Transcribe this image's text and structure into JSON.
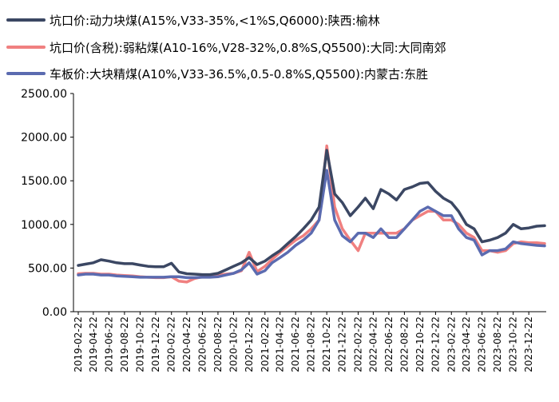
{
  "chart_data": {
    "type": "line",
    "title": "",
    "xlabel": "",
    "ylabel": "",
    "ylim": [
      0,
      2500
    ],
    "yticks": [
      "0.00",
      "500.00",
      "1000.00",
      "1500.00",
      "2000.00",
      "2500.00"
    ],
    "grid": false,
    "legend_position": "top-left",
    "x_tick_labels": [
      "2019-02-22",
      "2019-04-22",
      "2019-06-22",
      "2019-08-22",
      "2019-10-22",
      "2019-12-22",
      "2020-02-22",
      "2020-04-22",
      "2020-06-22",
      "2020-08-22",
      "2020-10-22",
      "2020-12-22",
      "2021-02-22",
      "2021-04-22",
      "2021-06-22",
      "2021-08-22",
      "2021-10-22",
      "2021-12-22",
      "2022-02-22",
      "2022-04-22",
      "2022-06-22",
      "2022-08-22",
      "2022-10-22",
      "2022-12-22",
      "2023-02-22",
      "2023-04-22",
      "2023-06-22",
      "2023-08-22",
      "2023-10-22",
      "2023-12-22"
    ],
    "x": [
      "2019-02-22",
      "2019-03-22",
      "2019-04-22",
      "2019-05-22",
      "2019-06-22",
      "2019-07-22",
      "2019-08-22",
      "2019-09-22",
      "2019-10-22",
      "2019-11-22",
      "2019-12-22",
      "2020-01-22",
      "2020-02-22",
      "2020-03-22",
      "2020-04-22",
      "2020-05-22",
      "2020-06-22",
      "2020-07-22",
      "2020-08-22",
      "2020-09-22",
      "2020-10-22",
      "2020-11-22",
      "2020-12-22",
      "2021-01-22",
      "2021-02-22",
      "2021-03-22",
      "2021-04-22",
      "2021-05-22",
      "2021-06-22",
      "2021-07-22",
      "2021-08-22",
      "2021-09-22",
      "2021-10-22",
      "2021-11-22",
      "2021-12-22",
      "2022-01-22",
      "2022-02-22",
      "2022-03-22",
      "2022-04-22",
      "2022-05-22",
      "2022-06-22",
      "2022-07-22",
      "2022-08-22",
      "2022-09-22",
      "2022-10-22",
      "2022-11-22",
      "2022-12-22",
      "2023-01-22",
      "2023-02-22",
      "2023-03-22",
      "2023-04-22",
      "2023-05-22",
      "2023-06-22",
      "2023-07-22",
      "2023-08-22",
      "2023-09-22",
      "2023-10-22",
      "2023-11-22",
      "2023-12-22",
      "2024-01-22",
      "2024-02-22"
    ],
    "series": [
      {
        "name": "坑口价:动力块煤(A15%,V33-35%,<1%S,Q6000):陕西:榆林",
        "color": "#3b4763",
        "values": [
          530,
          545,
          560,
          595,
          580,
          560,
          550,
          550,
          535,
          520,
          515,
          515,
          555,
          455,
          435,
          430,
          425,
          425,
          440,
          480,
          520,
          560,
          620,
          540,
          580,
          640,
          700,
          780,
          860,
          950,
          1050,
          1200,
          1850,
          1350,
          1250,
          1100,
          1200,
          1300,
          1180,
          1400,
          1350,
          1280,
          1400,
          1430,
          1470,
          1480,
          1380,
          1300,
          1250,
          1150,
          1000,
          950,
          800,
          820,
          850,
          900,
          1000,
          950,
          960,
          980,
          985
        ]
      },
      {
        "name": "坑口价(含税):弱粘煤(A10-16%,V28-32%,0.8%S,Q5500):大同:大同南郊",
        "color": "#f08080",
        "values": [
          435,
          440,
          440,
          430,
          430,
          420,
          415,
          410,
          400,
          395,
          390,
          390,
          400,
          350,
          340,
          380,
          400,
          410,
          420,
          430,
          440,
          470,
          680,
          460,
          520,
          600,
          680,
          750,
          820,
          870,
          950,
          1050,
          1900,
          1200,
          950,
          820,
          700,
          900,
          900,
          900,
          900,
          900,
          950,
          1050,
          1100,
          1150,
          1150,
          1050,
          1050,
          1000,
          900,
          850,
          700,
          700,
          680,
          700,
          780,
          800,
          790,
          790,
          780
        ]
      },
      {
        "name": "车板价:大块精煤(A10%,V33-36.5%,0.5-0.8%S,Q5500):内蒙古:东胜",
        "color": "#5b6bb0",
        "values": [
          420,
          430,
          430,
          420,
          420,
          410,
          405,
          400,
          395,
          395,
          395,
          395,
          400,
          400,
          390,
          390,
          395,
          395,
          400,
          420,
          440,
          480,
          560,
          430,
          470,
          560,
          620,
          680,
          760,
          820,
          900,
          1050,
          1620,
          1050,
          870,
          800,
          900,
          900,
          850,
          950,
          850,
          850,
          950,
          1050,
          1150,
          1200,
          1150,
          1100,
          1100,
          950,
          850,
          820,
          650,
          700,
          700,
          720,
          800,
          780,
          770,
          760,
          755
        ]
      }
    ]
  }
}
